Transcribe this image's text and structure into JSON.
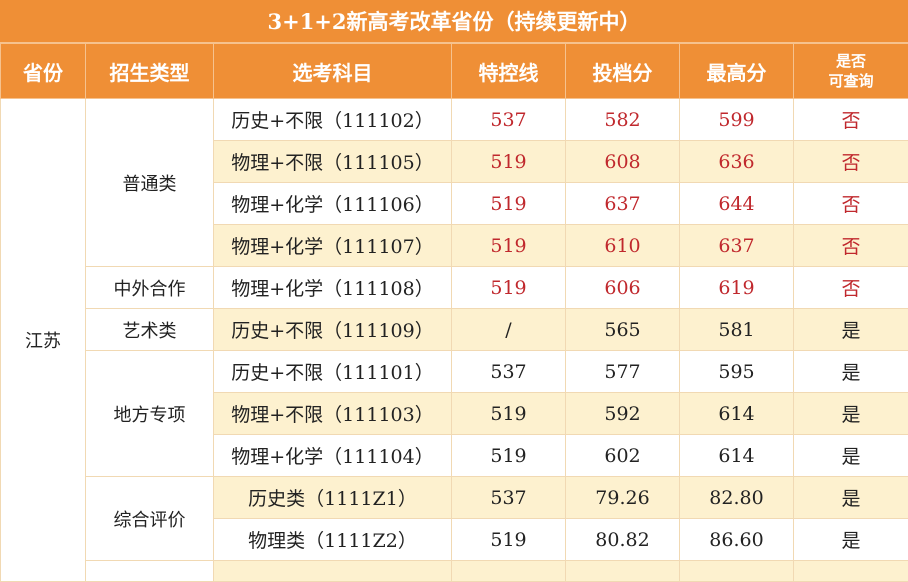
{
  "title": "3+1+2新高考改革省份（持续更新中）",
  "headers": [
    "省份",
    "招生类型",
    "选考科目",
    "特控线",
    "投档分",
    "最高分",
    "是否可查询"
  ],
  "header_last_lines": [
    "是否",
    "可查询"
  ],
  "colors": {
    "header_bg": "#ef8f36",
    "stripe": "#fdf1cf",
    "highlight_text": "#c0282d",
    "border": "#f1d9b3"
  },
  "province": "江苏",
  "rows": [
    {
      "type": "普通类",
      "subject": "历史+不限（111102）",
      "line": "537",
      "admit": "582",
      "max": "599",
      "query": "否",
      "highlight": true
    },
    {
      "subject": "物理+不限（111105）",
      "line": "519",
      "admit": "608",
      "max": "636",
      "query": "否",
      "highlight": true
    },
    {
      "subject": "物理+化学（111106）",
      "line": "519",
      "admit": "637",
      "max": "644",
      "query": "否",
      "highlight": true
    },
    {
      "subject": "物理+化学（111107）",
      "line": "519",
      "admit": "610",
      "max": "637",
      "query": "否",
      "highlight": true
    },
    {
      "type": "中外合作",
      "subject": "物理+化学（111108）",
      "line": "519",
      "admit": "606",
      "max": "619",
      "query": "否",
      "highlight": true
    },
    {
      "type": "艺术类",
      "subject": "历史+不限（111109）",
      "line": "/",
      "admit": "565",
      "max": "581",
      "query": "是",
      "highlight": false
    },
    {
      "type": "地方专项",
      "subject": "历史+不限（111101）",
      "line": "537",
      "admit": "577",
      "max": "595",
      "query": "是",
      "highlight": false
    },
    {
      "subject": "物理+不限（111103）",
      "line": "519",
      "admit": "592",
      "max": "614",
      "query": "是",
      "highlight": false
    },
    {
      "subject": "物理+化学（111104）",
      "line": "519",
      "admit": "602",
      "max": "614",
      "query": "是",
      "highlight": false
    },
    {
      "type": "综合评价",
      "subject": "历史类（1111Z1）",
      "line": "537",
      "admit": "79.26",
      "max": "82.80",
      "query": "是",
      "highlight": false
    },
    {
      "subject": "物理类（1111Z2）",
      "line": "519",
      "admit": "80.82",
      "max": "86.60",
      "query": "是",
      "highlight": false
    }
  ]
}
